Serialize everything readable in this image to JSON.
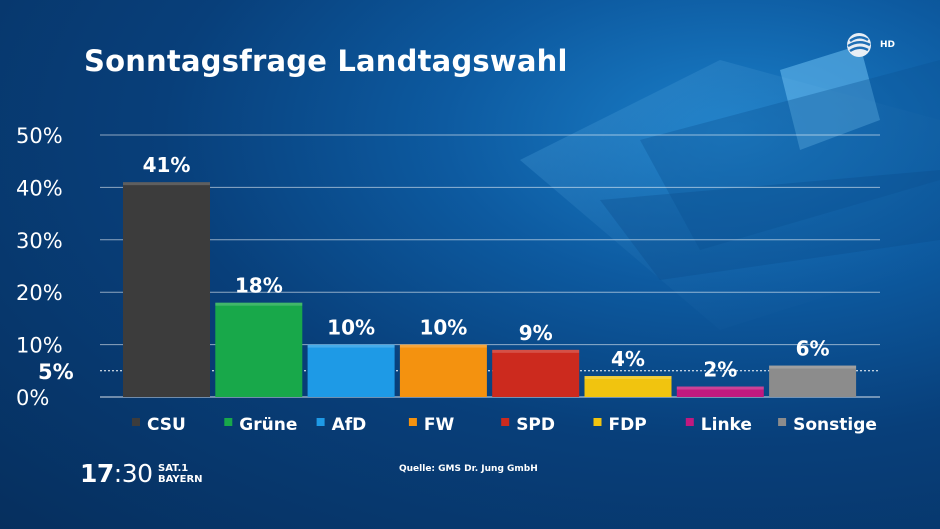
{
  "header": {
    "title": "Sonntagsfrage Landtagswahl"
  },
  "source": "Quelle: GMS Dr. Jung GmbH",
  "footer": {
    "clock_hour": "17",
    "clock_minutes": ":30",
    "channel_line1": "SAT.1",
    "channel_line2": "BAYERN"
  },
  "badge": {
    "hd": "HD"
  },
  "chart_data": {
    "type": "bar",
    "title": "Sonntagsfrage Landtagswahl",
    "xlabel": "",
    "ylabel": "",
    "ylim": [
      0,
      50
    ],
    "yticks": [
      "0%",
      "10%",
      "20%",
      "30%",
      "40%",
      "50%"
    ],
    "threshold": {
      "value": 5,
      "label": "5%"
    },
    "grid": true,
    "legend_position": "bottom",
    "categories": [
      "CSU",
      "Grüne",
      "AfD",
      "FW",
      "SPD",
      "FDP",
      "Linke",
      "Sonstige"
    ],
    "values": [
      41,
      18,
      10,
      10,
      9,
      4,
      2,
      6
    ],
    "value_labels": [
      "41%",
      "18%",
      "10%",
      "10%",
      "9%",
      "4%",
      "2%",
      "6%"
    ],
    "colors": [
      "#3c3c3c",
      "#18a84a",
      "#1e9ae6",
      "#f4920f",
      "#cc2a1e",
      "#f1c40f",
      "#c0197f",
      "#8c8c8c"
    ]
  }
}
